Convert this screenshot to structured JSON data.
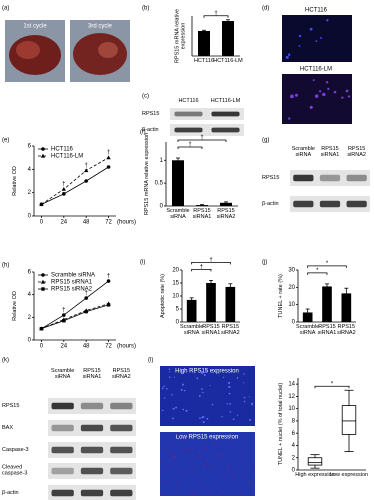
{
  "chart_data": [
    {
      "panel": "(b)",
      "type": "bar",
      "y_label": "RPS15 mRNA relative expression",
      "categories": [
        "HCT116",
        "HCT116-LM"
      ],
      "values": [
        1.0,
        1.4
      ],
      "errors": [
        0.03,
        0.05
      ],
      "color": "#000000",
      "ylim": [
        0,
        1.6
      ],
      "significance": [
        {
          "text": "†",
          "pair": [
            0,
            1
          ]
        }
      ]
    },
    {
      "panel": "(e)",
      "type": "line",
      "y_label": "Relative OD",
      "x_label": "(hours)",
      "x": [
        0,
        24,
        48,
        72
      ],
      "xlim": [
        -8,
        80
      ],
      "xticks": [
        0,
        24,
        48,
        72
      ],
      "ylim": [
        0,
        6
      ],
      "yticks": [
        0,
        2,
        4,
        6
      ],
      "legend": "top-left",
      "series": [
        {
          "name": "HCT116",
          "color": "#000000",
          "line_style": "solid",
          "marker": "circle",
          "values": [
            1.0,
            1.9,
            3.0,
            4.2
          ]
        },
        {
          "name": "HCT116-LM",
          "color": "#000000",
          "line_style": "dashed",
          "marker": "triangle",
          "values": [
            1.0,
            2.3,
            3.9,
            5.0
          ]
        }
      ],
      "significance": [
        {
          "text": "†",
          "x": 24
        },
        {
          "text": "†",
          "x": 48
        },
        {
          "text": "†",
          "x": 72
        }
      ]
    },
    {
      "panel": "(f)",
      "type": "bar",
      "y_label": "RPS15 mRNA relative expression",
      "categories": [
        "Scramble siRNA",
        "RPS15 siRNA1",
        "RPS15 siRNA2"
      ],
      "values": [
        1.0,
        0.02,
        0.07
      ],
      "errors": [
        0.05,
        0.01,
        0.02
      ],
      "color": "#000000",
      "ylim": [
        0,
        1.4
      ],
      "yticks": [
        0,
        0.5,
        1
      ],
      "significance": [
        {
          "text": "†",
          "pair": [
            0,
            1
          ]
        },
        {
          "text": "†",
          "pair": [
            0,
            2
          ]
        }
      ]
    },
    {
      "panel": "(h)",
      "type": "line",
      "y_label": "Relative OD",
      "x_label": "(hours)",
      "x": [
        0,
        24,
        48,
        72
      ],
      "xlim": [
        -8,
        80
      ],
      "xticks": [
        0,
        24,
        48,
        72
      ],
      "ylim": [
        0,
        6
      ],
      "yticks": [
        0,
        2,
        4,
        6
      ],
      "legend": "top-left",
      "series": [
        {
          "name": "Scramble siRNA",
          "color": "#000000",
          "line_style": "solid",
          "marker": "circle",
          "values": [
            1.0,
            2.2,
            3.7,
            5.2
          ]
        },
        {
          "name": "RPS15 siRNA1",
          "color": "#000000",
          "line_style": "dashed",
          "marker": "triangle",
          "values": [
            1.0,
            1.8,
            2.6,
            3.2
          ]
        },
        {
          "name": "RPS15 siRNA2",
          "color": "#000000",
          "line_style": "solid",
          "marker": "square",
          "values": [
            1.0,
            1.7,
            2.5,
            3.1
          ]
        }
      ],
      "significance": [
        {
          "text": "†",
          "x": 24
        },
        {
          "text": "†",
          "x": 48
        },
        {
          "text": "†",
          "x": 72
        }
      ]
    },
    {
      "panel": "(i)",
      "type": "bar",
      "y_label": "Apoptotic rate (%)",
      "categories": [
        "Scramble siRNA",
        "RPS15 siRNA1",
        "RPS15 siRNA2"
      ],
      "values": [
        8.5,
        15,
        13.5
      ],
      "errors": [
        0.8,
        1.0,
        1.2
      ],
      "color": "#000000",
      "ylim": [
        0,
        20
      ],
      "yticks": [
        0,
        5,
        10,
        15,
        20
      ],
      "significance": [
        {
          "text": "†",
          "pair": [
            0,
            1
          ]
        },
        {
          "text": "†",
          "pair": [
            0,
            2
          ]
        }
      ]
    },
    {
      "panel": "(j)",
      "type": "bar",
      "y_label": "TUNEL + rate (%)",
      "categories": [
        "Scramble siRNA",
        "RPS15 siRNA1",
        "RPS15 siRNA2"
      ],
      "values": [
        5.5,
        20.5,
        16.5
      ],
      "errors": [
        2.0,
        1.5,
        3.0
      ],
      "color": "#000000",
      "ylim": [
        0,
        30
      ],
      "yticks": [
        0,
        10,
        20,
        30
      ],
      "significance": [
        {
          "text": "*",
          "pair": [
            0,
            1
          ]
        },
        {
          "text": "*",
          "pair": [
            0,
            2
          ]
        }
      ]
    },
    {
      "type": "box",
      "y_label": "TUNEL + nuclei (% of total nuclei)",
      "categories": [
        "High expression",
        "Low expression"
      ],
      "boxes": [
        {
          "min": 0.3,
          "q1": 0.8,
          "median": 1.2,
          "q3": 2.0,
          "max": 2.5
        },
        {
          "min": 3.0,
          "q1": 5.8,
          "median": 8.0,
          "q3": 10.5,
          "max": 13.0
        }
      ],
      "ylim": [
        0,
        15
      ],
      "yticks": [
        0,
        2,
        4,
        6,
        8,
        10,
        12,
        14
      ],
      "significance": [
        {
          "text": "*",
          "pair": [
            0,
            1
          ]
        }
      ]
    }
  ],
  "figure_panels": {
    "a": {
      "label": "(a)",
      "photos": [
        "1st cycle",
        "3rd cycle"
      ]
    },
    "c": {
      "label": "(c)",
      "lanes": [
        "HCT116",
        "HCT116-LM"
      ],
      "rows": [
        "RPS15",
        "β-actin"
      ]
    },
    "d": {
      "label": "(d)",
      "images": [
        "HCT116",
        "HCT116-LM"
      ]
    },
    "g": {
      "label": "(g)",
      "lanes": [
        "Scramble siRNA",
        "RPS15 siRNA1",
        "RPS15 siRNA2"
      ],
      "rows": [
        "RPS15",
        "β-actin"
      ]
    },
    "k": {
      "label": "(k)",
      "lanes": [
        "Scramble siRNA",
        "RPS15 siRNA1",
        "RPS15 siRNA2"
      ],
      "rows": [
        "RPS15",
        "BAX",
        "Caspase-3",
        "Cleaved caspase-3",
        "β-actin"
      ]
    },
    "l": {
      "label": "(l)",
      "images": [
        "High RPS15 expression",
        "Low RPS15 expression"
      ]
    }
  }
}
